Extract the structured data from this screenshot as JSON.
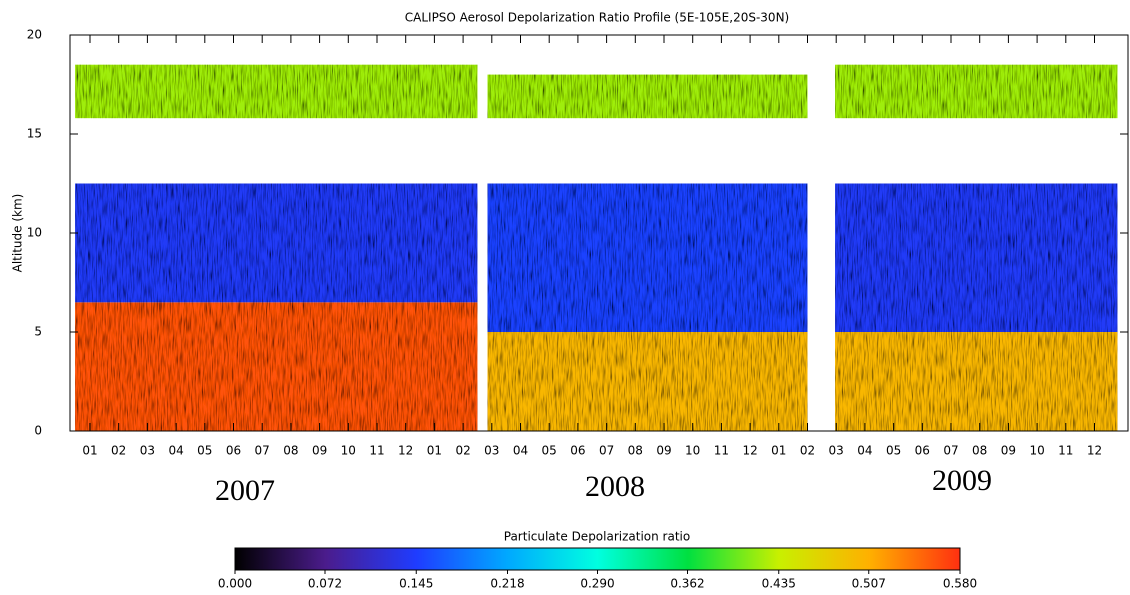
{
  "chart_data": {
    "type": "curtain",
    "title": "CALIPSO Aerosol Depolarization Ratio Profile (5E-105E,20S-30N)",
    "y_label": "Altitude (km)",
    "ylim": [
      0,
      20
    ],
    "yticks": [
      0,
      5,
      10,
      15,
      20
    ],
    "categories": [
      "01",
      "02",
      "03",
      "04",
      "05",
      "06",
      "07",
      "08",
      "09",
      "10",
      "11",
      "12",
      "01",
      "02",
      "03",
      "04",
      "05",
      "06",
      "07",
      "08",
      "09",
      "10",
      "11",
      "12",
      "01",
      "02",
      "03",
      "04",
      "05",
      "06",
      "07",
      "08",
      "09",
      "10",
      "11",
      "12"
    ],
    "annotations": [
      "2007",
      "2008",
      "2009"
    ],
    "colorbar": {
      "title": "Particulate Depolarization ratio",
      "clim": [
        0,
        0.58
      ],
      "colors": [
        "#000000",
        "#4b1c8c",
        "#1f3cff",
        "#00a8ff",
        "#00ffe0",
        "#00e040",
        "#c8f000",
        "#ffb000",
        "#ff3010"
      ],
      "ticks": [
        {
          "value": 0,
          "label": "0.000"
        },
        0.072,
        0.145,
        0.218,
        {
          "value": 0.29,
          "label": "0.290"
        },
        0.362,
        0.435,
        0.507,
        {
          "value": 0.58,
          "label": "0.580"
        }
      ]
    },
    "layers": [
      {
        "x": [
          -0.52,
          13.5
        ],
        "bottom": 0,
        "top": 6.5,
        "value": 0.56
      },
      {
        "x": [
          -0.52,
          13.5
        ],
        "bottom": 6.5,
        "top": 12.5,
        "value": 0.14
      },
      {
        "x": [
          -0.52,
          13.5
        ],
        "bottom": 15.8,
        "top": 18.5,
        "value": 0.42
      },
      {
        "x": [
          13.85,
          25.0
        ],
        "bottom": 0,
        "top": 5,
        "value": 0.5
      },
      {
        "x": [
          13.85,
          25.0
        ],
        "bottom": 5,
        "top": 12.5,
        "value": 0.15
      },
      {
        "x": [
          13.85,
          25.0
        ],
        "bottom": 15.8,
        "top": 18,
        "value": 0.42
      },
      {
        "x": [
          25.96,
          35.8
        ],
        "bottom": 0,
        "top": 5,
        "value": 0.5
      },
      {
        "x": [
          25.96,
          35.8
        ],
        "bottom": 5,
        "top": 12.5,
        "value": 0.14
      },
      {
        "x": [
          25.96,
          35.8
        ],
        "bottom": 15.8,
        "top": 18.5,
        "value": 0.42
      }
    ]
  }
}
